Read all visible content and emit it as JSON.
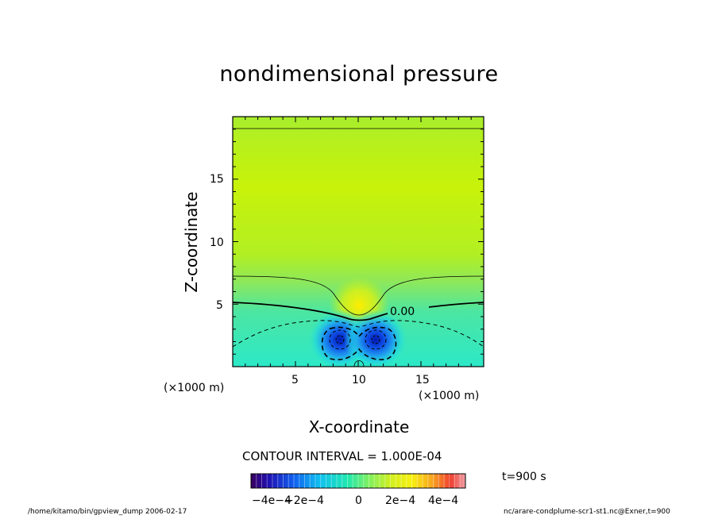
{
  "chart_data": {
    "type": "contour",
    "title": "nondimensional pressure",
    "xlabel": "X-coordinate",
    "ylabel": "Z-coordinate",
    "x_unit_label": "(×1000 m)",
    "z_unit_label": "(×1000 m)",
    "xlim": [
      0,
      20
    ],
    "ylim": [
      0,
      20
    ],
    "x_ticks": [
      5,
      10,
      15
    ],
    "y_ticks": [
      5,
      10,
      15
    ],
    "contour_interval_text": "CONTOUR INTERVAL = 1.000E-04",
    "contour_label": "0.00",
    "colorbar": {
      "range": [
        -0.0005,
        0.0005
      ],
      "tick_labels": [
        "−4e−4",
        "−2e−4",
        "0",
        "2e−4",
        "4e−4"
      ],
      "tick_values": [
        -0.0004,
        -0.0002,
        0,
        0.0002,
        0.0004
      ]
    },
    "features": {
      "pressure_minima_centers_x": [
        8.5,
        11.5
      ],
      "pressure_minima_center_z": 2.2,
      "pressure_maximum_x": 10,
      "pressure_maximum_z": 4.5,
      "zero_contour_far_field_z": 5.0
    }
  },
  "time_label": "t=900 s",
  "footer_left": "/home/kitamo/bin/gpview_dump  2006-02-17",
  "footer_right": "nc/arare-condplume-scr1-st1.nc@Exner,t=900"
}
